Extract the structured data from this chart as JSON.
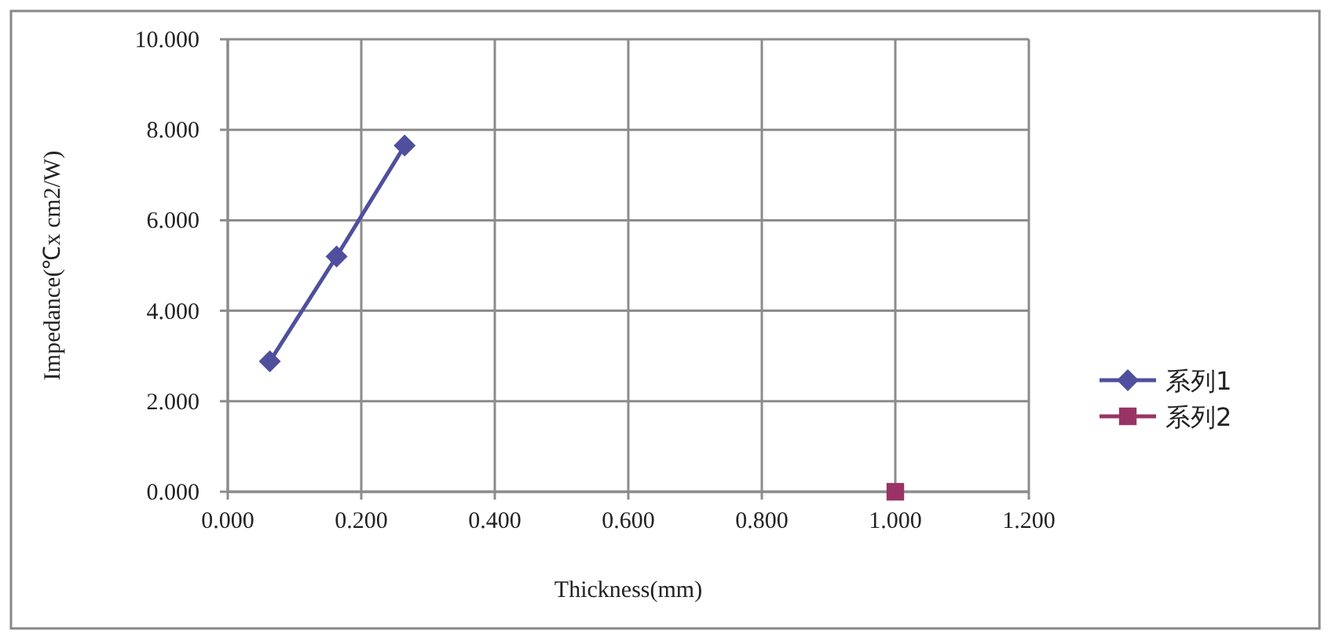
{
  "chart_data": {
    "type": "line",
    "xlabel": "Thickness(mm)",
    "ylabel": "Impedance(℃x cm2/W)",
    "xlim": [
      0,
      1.2
    ],
    "xticks": [
      {
        "value": 0,
        "label": "0.000"
      },
      {
        "value": 0.2,
        "label": "0.200"
      },
      {
        "value": 0.4,
        "label": "0.400"
      },
      {
        "value": 0.6,
        "label": "0.600"
      },
      {
        "value": 0.8,
        "label": "0.800"
      },
      {
        "value": 1,
        "label": "1.000"
      },
      {
        "value": 1.2,
        "label": "1.200"
      }
    ],
    "ylim": [
      0,
      10
    ],
    "yticks": [
      {
        "value": 0,
        "label": "0.000"
      },
      {
        "value": 2,
        "label": "2.000"
      },
      {
        "value": 4,
        "label": "4.000"
      },
      {
        "value": 6,
        "label": "6.000"
      },
      {
        "value": 8,
        "label": "8.000"
      },
      {
        "value": 10,
        "label": "10.000"
      }
    ],
    "grid": true,
    "legend": "right",
    "line_style": "solid",
    "series": [
      {
        "name": "系列1",
        "color": "#4f4f9e",
        "marker": "diamond",
        "x": [
          0.063,
          0.163,
          0.265
        ],
        "values": [
          2.88,
          5.2,
          7.65
        ]
      },
      {
        "name": "系列2",
        "color": "#993366",
        "marker": "square",
        "x": [
          1.0
        ],
        "values": [
          0
        ]
      }
    ]
  }
}
